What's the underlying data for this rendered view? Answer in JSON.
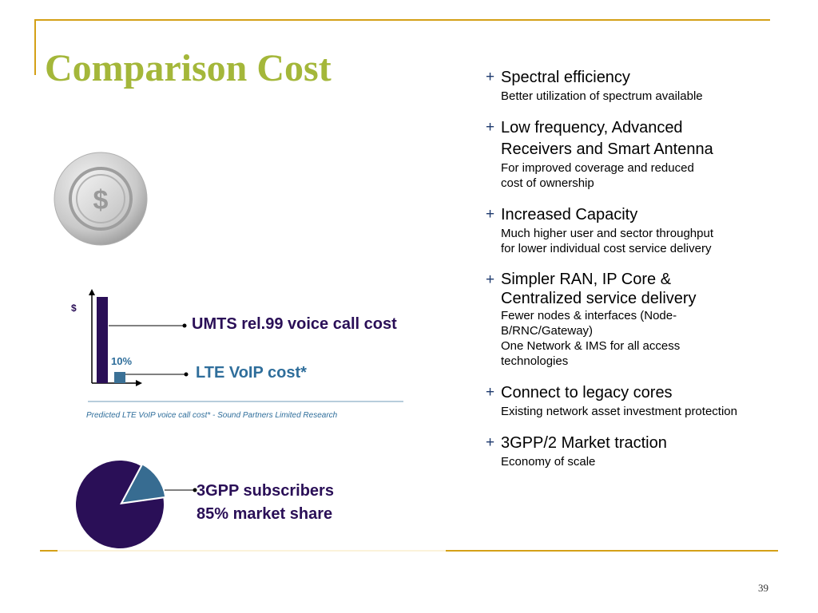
{
  "title": "Comparison Cost",
  "bullets": [
    {
      "title": "Spectral efficiency",
      "desc": "Better utilization of spectrum available"
    },
    {
      "title": "Low frequency, Advanced\nReceivers and Smart Antenna",
      "desc": "For improved coverage and reduced\ncost of ownership"
    },
    {
      "title": "Increased Capacity",
      "desc": "Much higher user and sector throughput\nfor lower individual cost service delivery"
    },
    {
      "title": "Simpler RAN, IP Core &\nCentralized service delivery",
      "desc": "Fewer nodes & interfaces (Node-\nB/RNC/Gateway)\nOne Network & IMS for all access\ntechnologies"
    },
    {
      "title": "Connect to legacy cores",
      "desc": "Existing network asset investment protection"
    },
    {
      "title": "3GPP/2 Market traction",
      "desc": "Economy of scale"
    }
  ],
  "bullet_marker": "+",
  "cost_chart": {
    "y_symbol": "$",
    "umts_label": "UMTS rel.99 voice call cost",
    "lte_label": "LTE VoIP cost*",
    "lte_percent_label": "10%",
    "umts_value": 100,
    "lte_value": 10,
    "source": "Predicted LTE VoIP voice call cost* - Sound Partners Limited Research"
  },
  "market_share": {
    "label_line1": "3GPP subscribers",
    "label_line2": "85% market share",
    "share_percent": 85
  },
  "coin_symbol": "$",
  "page_number": "39",
  "colors": {
    "title": "#A4B73A",
    "accent_gold": "#D4A017",
    "dark_purple": "#2A0F57",
    "steel_blue": "#2F6E9B",
    "plus": "#1E3A6E"
  }
}
